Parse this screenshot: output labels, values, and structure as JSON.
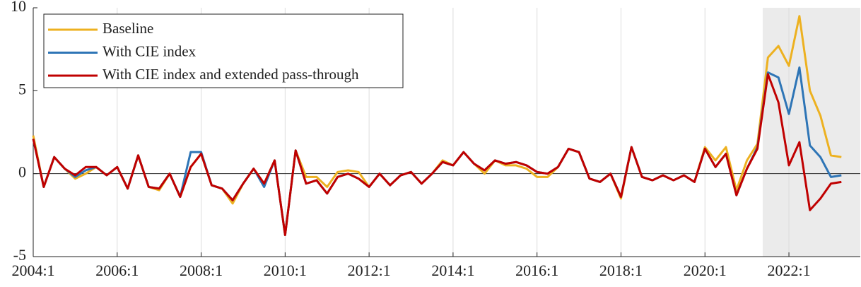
{
  "chart_data": {
    "type": "line",
    "categories": [
      "2004:1",
      null,
      null,
      null,
      null,
      null,
      null,
      null,
      "2006:1",
      null,
      null,
      null,
      null,
      null,
      null,
      null,
      "2008:1",
      null,
      null,
      null,
      null,
      null,
      null,
      null,
      "2010:1",
      null,
      null,
      null,
      null,
      null,
      null,
      null,
      "2012:1",
      null,
      null,
      null,
      null,
      null,
      null,
      null,
      "2014:1",
      null,
      null,
      null,
      null,
      null,
      null,
      null,
      "2016:1",
      null,
      null,
      null,
      null,
      null,
      null,
      null,
      "2018:1",
      null,
      null,
      null,
      null,
      null,
      null,
      null,
      "2020:1",
      null,
      null,
      null,
      null,
      null,
      null,
      null,
      "2022:1",
      null,
      null,
      null,
      null,
      null
    ],
    "ylim": [
      -5,
      10
    ],
    "yticks": [
      -5,
      0,
      5,
      10
    ],
    "grid": "x",
    "series": [
      {
        "name": "Baseline",
        "color": "#edb120",
        "values": [
          2.3,
          -0.8,
          1.0,
          0.3,
          -0.3,
          0.0,
          0.4,
          -0.1,
          0.4,
          -0.9,
          1.1,
          -0.8,
          -1.0,
          0.0,
          -1.4,
          0.4,
          1.2,
          -0.7,
          -0.9,
          -1.8,
          -0.6,
          0.3,
          -0.6,
          0.8,
          -3.7,
          1.4,
          -0.2,
          -0.2,
          -0.8,
          0.1,
          0.2,
          0.1,
          -0.8,
          0.0,
          -0.7,
          -0.1,
          0.1,
          -0.6,
          0.0,
          0.8,
          0.5,
          1.3,
          0.6,
          0.0,
          0.8,
          0.5,
          0.5,
          0.3,
          -0.2,
          -0.2,
          0.4,
          1.5,
          1.3,
          -0.3,
          -0.5,
          0.0,
          -1.5,
          1.6,
          -0.2,
          -0.4,
          -0.1,
          -0.4,
          -0.1,
          -0.5,
          1.6,
          0.8,
          1.6,
          -1.0,
          0.8,
          1.8,
          7.0,
          7.7,
          6.5,
          9.5,
          5.0,
          3.5,
          1.1,
          1.0
        ]
      },
      {
        "name": "With CIE index",
        "color": "#2e75b6",
        "values": [
          2.1,
          -0.8,
          1.0,
          0.3,
          -0.2,
          0.2,
          0.4,
          -0.1,
          0.4,
          -0.9,
          1.1,
          -0.8,
          -0.9,
          0.0,
          -1.4,
          1.3,
          1.3,
          -0.7,
          -0.9,
          -1.6,
          -0.6,
          0.3,
          -0.8,
          0.8,
          -3.7,
          1.4,
          -0.6,
          -0.4,
          -1.2,
          -0.2,
          0.0,
          -0.3,
          -0.8,
          0.0,
          -0.7,
          -0.1,
          0.1,
          -0.6,
          0.0,
          0.7,
          0.5,
          1.3,
          0.6,
          0.2,
          0.8,
          0.6,
          0.7,
          0.5,
          0.1,
          0.0,
          0.4,
          1.5,
          1.3,
          -0.3,
          -0.5,
          0.0,
          -1.4,
          1.6,
          -0.2,
          -0.4,
          -0.1,
          -0.4,
          -0.1,
          -0.5,
          1.5,
          0.4,
          1.2,
          -1.3,
          0.3,
          1.6,
          6.1,
          5.8,
          3.6,
          6.4,
          1.7,
          1.0,
          -0.2,
          -0.1
        ]
      },
      {
        "name": "With CIE index and extended pass-through",
        "color": "#c00000",
        "values": [
          2.1,
          -0.8,
          1.0,
          0.3,
          -0.1,
          0.4,
          0.4,
          -0.1,
          0.4,
          -0.9,
          1.1,
          -0.8,
          -0.9,
          0.0,
          -1.4,
          0.4,
          1.2,
          -0.7,
          -0.9,
          -1.6,
          -0.6,
          0.3,
          -0.6,
          0.8,
          -3.7,
          1.4,
          -0.6,
          -0.4,
          -1.2,
          -0.2,
          0.0,
          -0.3,
          -0.8,
          0.0,
          -0.7,
          -0.1,
          0.1,
          -0.6,
          0.0,
          0.7,
          0.5,
          1.3,
          0.6,
          0.2,
          0.8,
          0.6,
          0.7,
          0.5,
          0.1,
          0.0,
          0.4,
          1.5,
          1.3,
          -0.3,
          -0.5,
          0.0,
          -1.4,
          1.6,
          -0.2,
          -0.4,
          -0.1,
          -0.4,
          -0.1,
          -0.5,
          1.5,
          0.4,
          1.2,
          -1.3,
          0.3,
          1.5,
          6.0,
          4.3,
          0.5,
          1.9,
          -2.2,
          -1.5,
          -0.6,
          -0.5
        ]
      }
    ]
  }
}
